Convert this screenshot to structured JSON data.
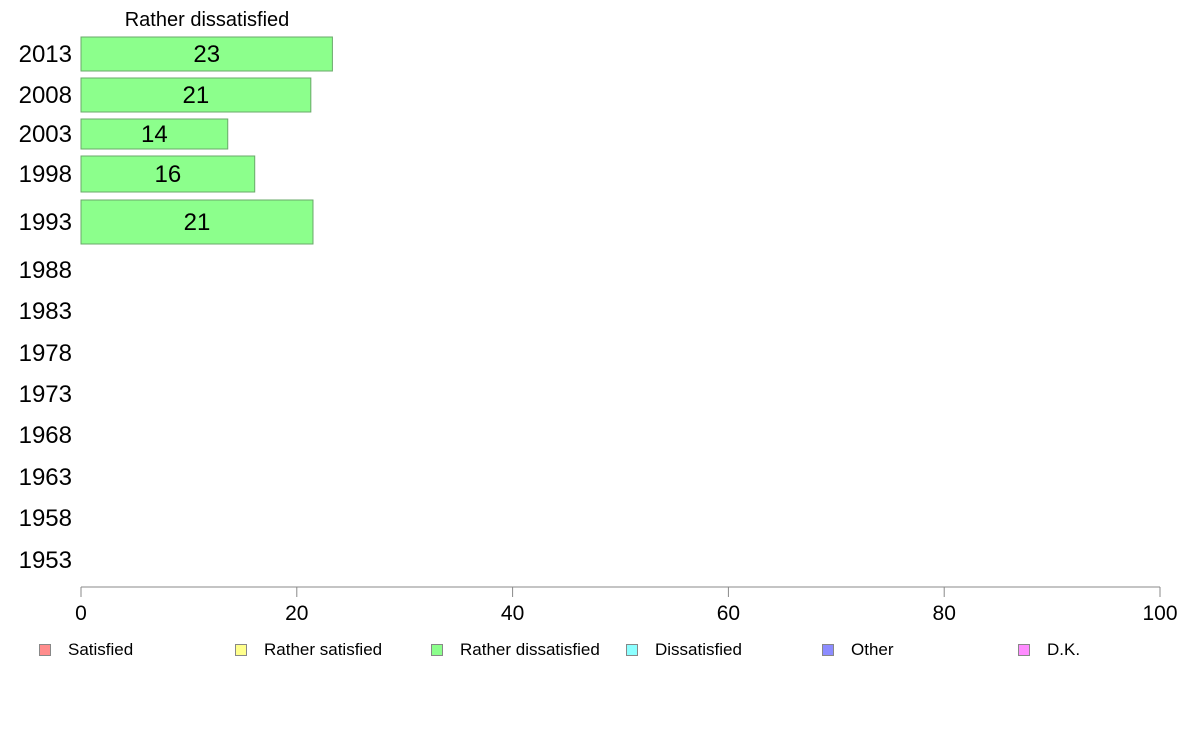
{
  "chart_data": {
    "type": "bar",
    "orientation": "horizontal",
    "title": "Rather dissatisfied",
    "xlabel": "",
    "ylabel": "",
    "xlim": [
      0,
      100
    ],
    "xticks": [
      "0",
      "20",
      "40",
      "60",
      "80",
      "100"
    ],
    "categories": [
      "2013",
      "2008",
      "2003",
      "1998",
      "1993",
      "1988",
      "1983",
      "1978",
      "1973",
      "1968",
      "1963",
      "1958",
      "1953"
    ],
    "series": [
      {
        "name": "Rather dissatisfied",
        "color": "#8cff8c",
        "values": [
          23.3,
          21.3,
          13.6,
          16.1,
          21.5,
          null,
          null,
          null,
          null,
          null,
          null,
          null,
          null
        ],
        "labels": [
          "23",
          "21",
          "14",
          "16",
          "21",
          "",
          "",
          "",
          "",
          "",
          "",
          "",
          ""
        ]
      }
    ],
    "legend": {
      "position": "bottom",
      "items": [
        {
          "label": "Satisfied",
          "color": "#ff8c8c"
        },
        {
          "label": "Rather satisfied",
          "color": "#ffff8c"
        },
        {
          "label": "Rather dissatisfied",
          "color": "#8cff8c"
        },
        {
          "label": "Dissatisfied",
          "color": "#8cffff"
        },
        {
          "label": "Other",
          "color": "#8c8cff"
        },
        {
          "label": "D.K.",
          "color": "#ff8cff"
        }
      ]
    },
    "grid": false
  }
}
